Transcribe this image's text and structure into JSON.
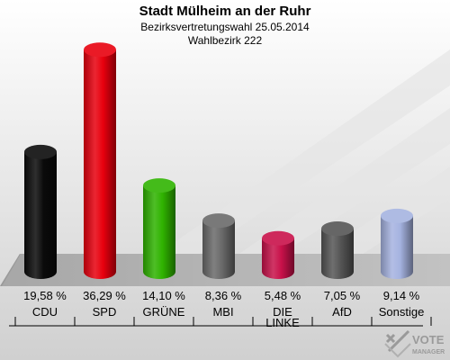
{
  "chart_data": {
    "type": "bar",
    "title": "Stadt Mülheim an der Ruhr",
    "subtitle": "Bezirksvertretungswahl 25.05.2014",
    "subtitle2": "Wahlbezirk 222",
    "categories": [
      "CDU",
      "SPD",
      "GRÜNE",
      "MBI",
      "DIE LINKE",
      "AfD",
      "Sonstige"
    ],
    "category_lines": [
      [
        "CDU"
      ],
      [
        "SPD"
      ],
      [
        "GRÜNE"
      ],
      [
        "MBI"
      ],
      [
        "DIE",
        "LINKE"
      ],
      [
        "AfD"
      ],
      [
        "Sonstige"
      ]
    ],
    "values": [
      19.58,
      36.29,
      14.1,
      8.36,
      5.48,
      7.05,
      9.14
    ],
    "value_labels": [
      "19,58 %",
      "36,29 %",
      "14,10 %",
      "8,36 %",
      "5,48 %",
      "7,05 %",
      "9,14 %"
    ],
    "colors": [
      "#0a0a0a",
      "#e8000e",
      "#2fb300",
      "#6a6a6a",
      "#c8114a",
      "#555555",
      "#a5b3e0"
    ],
    "ylim": [
      0,
      40
    ],
    "grid": false,
    "legend": "none"
  },
  "watermark": {
    "text_top": "VOTE",
    "text_bottom": "MANAGER"
  }
}
